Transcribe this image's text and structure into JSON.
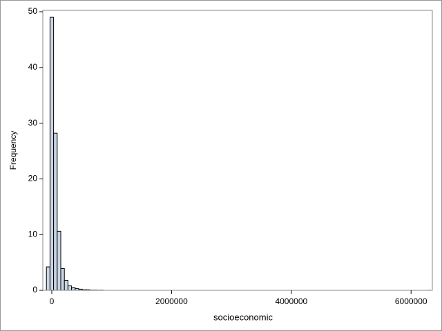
{
  "chart_data": {
    "type": "histogram",
    "xlabel": "socioeconomic",
    "ylabel": "Frequency",
    "bins": [
      -90000,
      -30000,
      30000,
      90000,
      150000,
      210000,
      270000,
      330000,
      390000,
      450000,
      510000,
      570000,
      630000,
      690000,
      750000,
      810000,
      870000,
      930000,
      990000,
      1050000,
      1110000,
      1170000,
      1230000,
      1290000,
      1350000,
      1410000,
      1470000,
      1530000,
      1590000,
      1650000,
      1710000,
      1770000,
      1830000,
      1890000,
      1950000,
      2010000,
      2070000,
      2130000,
      2190000,
      2250000,
      2310000,
      2370000,
      2430000,
      2490000,
      2550000,
      2610000,
      2670000,
      2730000,
      2790000,
      2850000,
      2910000,
      2970000,
      3030000,
      3090000,
      3150000,
      3210000,
      3270000,
      3330000,
      3390000,
      3450000,
      3510000,
      3570000,
      3630000,
      3690000,
      3750000,
      3810000,
      3870000,
      3930000,
      3990000,
      4050000,
      4110000,
      4170000,
      4230000,
      4290000,
      4350000,
      4410000,
      4470000,
      4530000,
      4590000,
      4650000,
      4710000,
      4770000,
      4830000,
      4890000,
      4950000,
      5010000,
      5070000,
      5130000,
      5190000,
      5250000,
      5310000,
      5370000,
      5430000,
      5490000,
      5550000,
      5610000,
      5670000,
      5730000,
      5790000,
      5850000,
      5910000,
      5970000,
      6030000,
      6090000,
      6150000,
      6210000,
      6270000,
      6330000
    ],
    "values": [
      4.2,
      49,
      28.2,
      10.6,
      3.9,
      1.8,
      0.8,
      0.5,
      0.3,
      0.2,
      0.1,
      0.1,
      0.05,
      0.05,
      0.03,
      0.03,
      0,
      0,
      0,
      0,
      0,
      0,
      0,
      0,
      0,
      0,
      0,
      0,
      0,
      0,
      0,
      0,
      0,
      0,
      0,
      0,
      0,
      0,
      0,
      0,
      0,
      0,
      0,
      0,
      0,
      0,
      0,
      0,
      0,
      0,
      0,
      0,
      0,
      0,
      0,
      0,
      0,
      0,
      0,
      0,
      0,
      0,
      0,
      0,
      0,
      0,
      0,
      0,
      0,
      0,
      0,
      0,
      0,
      0,
      0,
      0,
      0,
      0,
      0,
      0,
      0,
      0,
      0,
      0,
      0,
      0,
      0,
      0,
      0,
      0,
      0,
      0,
      0,
      0,
      0,
      0,
      0,
      0,
      0,
      0,
      0,
      0,
      0,
      0,
      0,
      0,
      0.01
    ],
    "color": "#cad5e5",
    "edge_color": "#000000",
    "xlim": [
      -150000,
      6355000
    ],
    "xticks": [
      0,
      2000000,
      4000000,
      6000000
    ],
    "ylim": [
      0,
      50.25
    ],
    "yticks": [
      0,
      10,
      20,
      30,
      40,
      50
    ]
  }
}
